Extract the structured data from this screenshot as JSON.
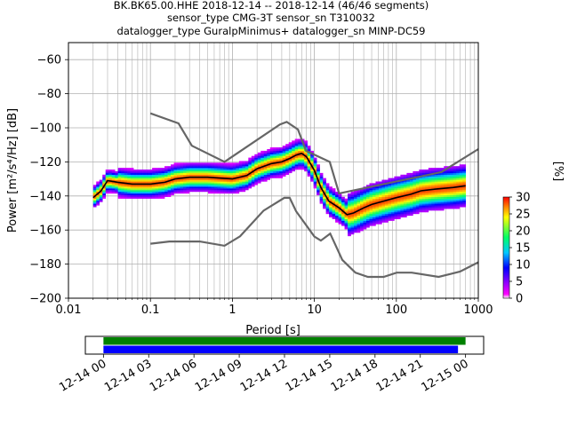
{
  "title": {
    "line1": "BK.BK65.00.HHE   2018-12-14 -- 2018-12-14  (46/46 segments)",
    "line2": "sensor_type CMG-3T sensor_sn T310032",
    "line3": "datalogger_type GuralpMinimus+ datalogger_sn MINP-DC59"
  },
  "chart_data": [
    {
      "type": "heatmap",
      "title": "",
      "xlabel": "Period [s]",
      "ylabel": "Power [m²/s⁴/Hz] [dB]",
      "xscale": "log",
      "xlim": [
        0.01,
        1000
      ],
      "ylim": [
        -200,
        -50
      ],
      "x_ticks": [
        "0.01",
        "0.1",
        "1",
        "10",
        "100",
        "1000"
      ],
      "y_ticks": [
        "−200",
        "−180",
        "−160",
        "−140",
        "−120",
        "−100",
        "−80",
        "−60"
      ],
      "grid": true,
      "colorbar": {
        "label": "[%]",
        "range": [
          0,
          30
        ],
        "ticks": [
          "0",
          "5",
          "10",
          "15",
          "20",
          "25",
          "30"
        ],
        "colors": [
          "#ffffff",
          "#ff00ff",
          "#0000ff",
          "#00c8ff",
          "#00ff66",
          "#ffff00",
          "#ff8800",
          "#ff0000"
        ]
      },
      "mode_curve": {
        "period": [
          0.02,
          0.025,
          0.03,
          0.04,
          0.06,
          0.1,
          0.15,
          0.2,
          0.3,
          0.5,
          1,
          1.5,
          2,
          3,
          4,
          5,
          6,
          7,
          8,
          10,
          12,
          15,
          20,
          25,
          30,
          40,
          50,
          70,
          100,
          150,
          200,
          300,
          500,
          700
        ],
        "power": [
          -141,
          -137,
          -131,
          -132,
          -133,
          -133,
          -132,
          -130,
          -129,
          -129,
          -130,
          -128,
          -124,
          -121,
          -120,
          -118,
          -116,
          -115,
          -117,
          -125,
          -135,
          -143,
          -147,
          -151,
          -150,
          -147,
          -145,
          -143,
          -141,
          -139,
          -137,
          -136,
          -135,
          -134
        ]
      },
      "noise_model_high": {
        "period": [
          0.1,
          0.22,
          0.32,
          0.8,
          3.8,
          4.6,
          6.3,
          7.9,
          15.4,
          20,
          354.8,
          1000
        ],
        "power": [
          -91.5,
          -97.4,
          -110.5,
          -120,
          -98,
          -96.5,
          -101,
          -113.5,
          -120,
          -138.5,
          -126,
          -112.5
        ]
      },
      "noise_model_low": {
        "period": [
          0.1,
          0.17,
          0.4,
          0.8,
          1.24,
          2.4,
          4.3,
          5,
          6,
          10,
          12,
          15.6,
          21.9,
          31.6,
          45,
          70,
          101,
          154,
          328,
          600,
          1000
        ],
        "power": [
          -168,
          -166.7,
          -166.7,
          -169.2,
          -163.7,
          -148.6,
          -141.1,
          -141.1,
          -149,
          -163.8,
          -166.2,
          -162.1,
          -177.5,
          -185,
          -187.5,
          -187.5,
          -185,
          -185,
          -187.5,
          -184.4,
          -178.9
        ]
      }
    },
    {
      "type": "timeline",
      "x_ticks": [
        "12-14 00",
        "12-14 03",
        "12-14 06",
        "12-14 09",
        "12-14 12",
        "12-14 15",
        "12-14 18",
        "12-14 21",
        "12-15 00"
      ],
      "xlim_hours": [
        -1.2,
        25.2
      ],
      "bars": [
        {
          "color": "#008000",
          "start_hour": 0,
          "end_hour": 24
        },
        {
          "color": "#0000ff",
          "start_hour": 0,
          "end_hour": 23.5
        }
      ]
    }
  ]
}
